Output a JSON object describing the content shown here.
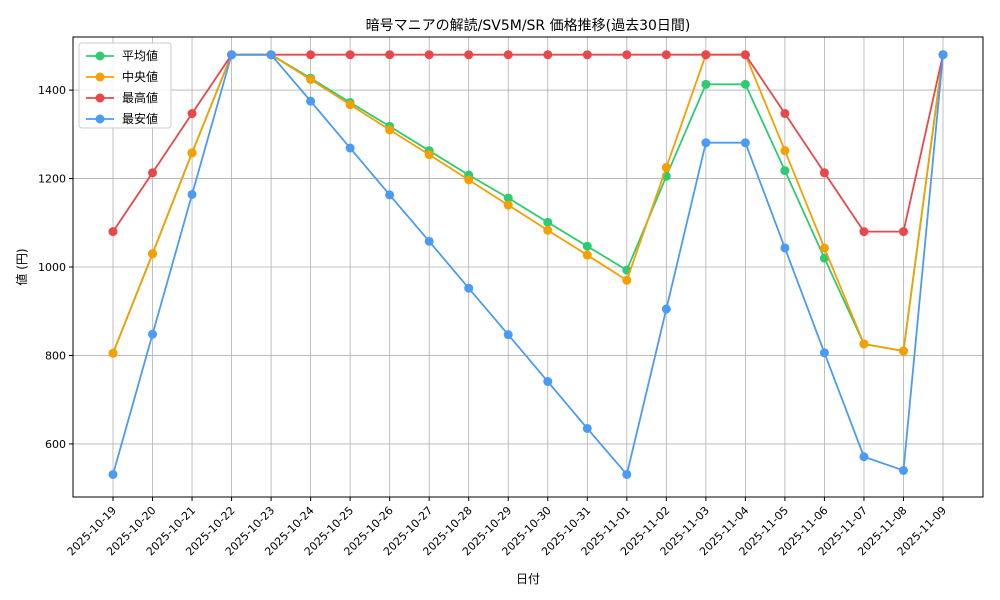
{
  "chart_data": {
    "type": "line",
    "title": "暗号マニアの解読/SV5M/SR 価格推移(過去30日間)",
    "xlabel": "日付",
    "ylabel": "値 (円)",
    "ylim": [
      480,
      1520
    ],
    "yticks": [
      600,
      800,
      1000,
      1200,
      1400
    ],
    "grid": true,
    "legend_position": "top-left",
    "categories": [
      "2025-10-19",
      "2025-10-20",
      "2025-10-21",
      "2025-10-22",
      "2025-10-23",
      "2025-10-24",
      "2025-10-25",
      "2025-10-26",
      "2025-10-27",
      "2025-10-28",
      "2025-10-29",
      "2025-10-30",
      "2025-10-31",
      "2025-11-01",
      "2025-11-02",
      "2025-11-03",
      "2025-11-04",
      "2025-11-05",
      "2025-11-06",
      "2025-11-07",
      "2025-11-08",
      "2025-11-09"
    ],
    "series": [
      {
        "name": "平均値",
        "color": "#2ecc71",
        "values": [
          805,
          1030,
          1258,
          1480,
          1480,
          1427,
          1372,
          1318,
          1263,
          1208,
          1156,
          1101,
          1047,
          993,
          1205,
          1413,
          1413,
          1218,
          1020,
          826,
          810,
          1480
        ]
      },
      {
        "name": "中央値",
        "color": "#f5a000",
        "values": [
          805,
          1030,
          1258,
          1480,
          1480,
          1424,
          1367,
          1310,
          1254,
          1197,
          1140,
          1083,
          1027,
          970,
          1225,
          1480,
          1480,
          1263,
          1043,
          826,
          810,
          1480
        ]
      },
      {
        "name": "最高値",
        "color": "#e8474c",
        "values": [
          1080,
          1213,
          1347,
          1480,
          1480,
          1480,
          1480,
          1480,
          1480,
          1480,
          1480,
          1480,
          1480,
          1480,
          1480,
          1480,
          1480,
          1347,
          1213,
          1080,
          1080,
          1480
        ]
      },
      {
        "name": "最安値",
        "color": "#4b9bf5",
        "values": [
          531,
          848,
          1164,
          1480,
          1480,
          1375,
          1269,
          1163,
          1058,
          952,
          847,
          741,
          635,
          531,
          905,
          1281,
          1281,
          1043,
          806,
          571,
          540,
          1480
        ]
      }
    ]
  }
}
